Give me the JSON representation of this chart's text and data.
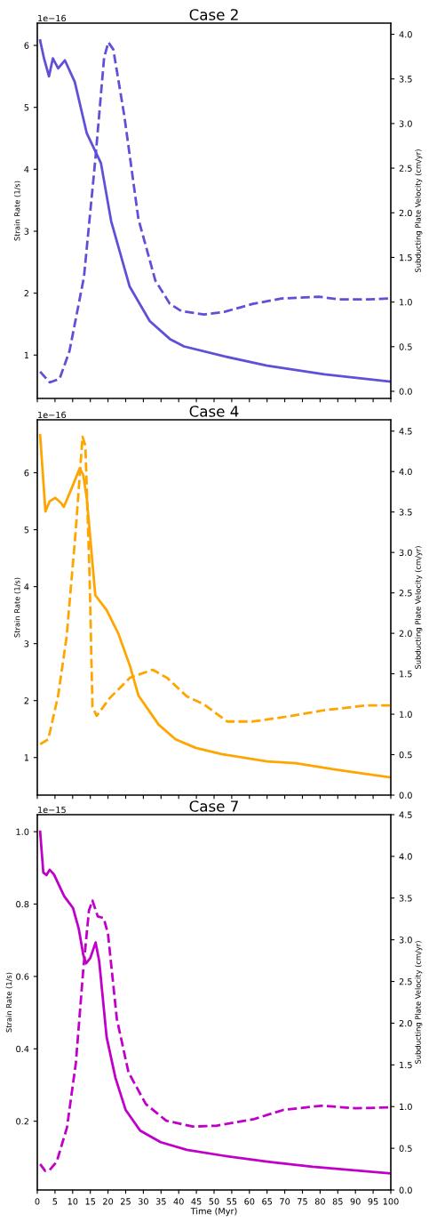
{
  "chart_data": [
    {
      "type": "line",
      "title": "Case 2",
      "ylabel": "Strain Rate (1/s)",
      "y2label": "Subducting Plate Velocity (cm/yr)",
      "annotations": [
        "1e−16"
      ],
      "tick_labels": "y",
      "xlim": [
        0,
        100
      ],
      "xticks": [
        0,
        5,
        10,
        15,
        20,
        25,
        30,
        35,
        40,
        45,
        50,
        55,
        60,
        65,
        70,
        75,
        80,
        85,
        90,
        95,
        100
      ],
      "ylim": [
        0.3,
        6.36
      ],
      "yticks": [
        1,
        2,
        3,
        4,
        5,
        6
      ],
      "y2lim": [
        -0.08,
        4.125
      ],
      "y2ticks": [
        {
          "value": 0,
          "label": "0.0"
        },
        0.5,
        {
          "value": 1,
          "label": "1.0"
        },
        1.5,
        {
          "value": 2,
          "label": "2.0"
        },
        2.5,
        {
          "value": 3,
          "label": "3.0"
        },
        3.5,
        {
          "value": 4,
          "label": "4.0"
        }
      ],
      "grid": false,
      "series": [
        {
          "color": "#5f50d8",
          "line_style": "solid",
          "x": [
            0.8,
            1.9,
            3.3,
            4.4,
            5.9,
            7.8,
            10.6,
            14.0,
            18.0,
            20.9,
            26.1,
            31.8,
            37.5,
            41.5,
            52.9,
            65.0,
            81.2,
            100
          ],
          "values": [
            6.08,
            5.79,
            5.5,
            5.79,
            5.63,
            5.76,
            5.41,
            4.58,
            4.1,
            3.16,
            2.11,
            1.55,
            1.26,
            1.14,
            0.98,
            0.83,
            0.69,
            0.57
          ]
        },
        {
          "color": "#5f50d8",
          "line_style": "dashed",
          "axis": "y2",
          "x": [
            0.8,
            3.5,
            6.3,
            9.1,
            13.2,
            16.4,
            18.9,
            20.1,
            21.5,
            24.6,
            28.6,
            33.4,
            37.5,
            40.7,
            47.2,
            52.9,
            61.0,
            69.1,
            79.6,
            85.3,
            93.4,
            100
          ],
          "values": [
            0.22,
            0.1,
            0.14,
            0.45,
            1.28,
            2.59,
            3.74,
            3.91,
            3.83,
            3.09,
            1.93,
            1.24,
            0.98,
            0.9,
            0.86,
            0.89,
            0.98,
            1.04,
            1.06,
            1.03,
            1.03,
            1.04
          ]
        }
      ]
    },
    {
      "type": "line",
      "title": "Case 4",
      "ylabel": "Strain Rate (1/s)",
      "y2label": "Subducting Plate Velocity (cm/yr)",
      "annotations": [
        "1e−16"
      ],
      "tick_labels": "y",
      "xlim": [
        0,
        100
      ],
      "xticks": [
        0,
        5,
        10,
        15,
        20,
        25,
        30,
        35,
        40,
        45,
        50,
        55,
        60,
        65,
        70,
        75,
        80,
        85,
        90,
        95,
        100
      ],
      "ylim": [
        0.34,
        6.93
      ],
      "yticks": [
        1,
        2,
        3,
        4,
        5,
        6
      ],
      "y2lim": [
        0,
        4.64
      ],
      "y2ticks": [
        {
          "value": 0,
          "label": "0.0"
        },
        0.5,
        {
          "value": 1,
          "label": "1.0"
        },
        1.5,
        {
          "value": 2,
          "label": "2.0"
        },
        2.5,
        {
          "value": 3,
          "label": "3.0"
        },
        3.5,
        {
          "value": 4,
          "label": "4.0"
        },
        4.5
      ],
      "grid": false,
      "series": [
        {
          "color": "#ffa500",
          "line_style": "solid",
          "x": [
            0.8,
            2.3,
            3.5,
            5.1,
            6.7,
            7.5,
            9.6,
            12.0,
            13.0,
            14.0,
            16.4,
            19.6,
            22.9,
            26.2,
            28.6,
            34.3,
            39.1,
            44.8,
            52.1,
            65.0,
            73.1,
            85.3,
            100
          ],
          "values": [
            6.66,
            5.32,
            5.5,
            5.56,
            5.47,
            5.4,
            5.71,
            6.08,
            5.96,
            5.55,
            3.85,
            3.59,
            3.18,
            2.61,
            2.09,
            1.58,
            1.32,
            1.17,
            1.06,
            0.93,
            0.9,
            0.78,
            0.65
          ]
        },
        {
          "color": "#ffa500",
          "line_style": "dashed",
          "axis": "y2",
          "x": [
            0.8,
            3.1,
            5.9,
            8.3,
            10.8,
            12.8,
            13.6,
            14.8,
            15.6,
            16.8,
            20.5,
            26.2,
            32.6,
            36.7,
            42.3,
            47.2,
            53.7,
            61.0,
            69.1,
            81.2,
            93.4,
            100
          ],
          "values": [
            0.63,
            0.69,
            1.23,
            1.96,
            3.23,
            4.43,
            4.32,
            2.69,
            1.09,
            0.98,
            1.2,
            1.45,
            1.55,
            1.45,
            1.22,
            1.12,
            0.91,
            0.91,
            0.96,
            1.05,
            1.11,
            1.11
          ]
        }
      ]
    },
    {
      "type": "line",
      "title": "Case 7",
      "xlabel": "Time (Myr)",
      "ylabel": "Strain Rate (1/s)",
      "y2label": "Subducting Plate Velocity (cm/yr)",
      "annotations": [
        "1e−15"
      ],
      "xlim": [
        0,
        100
      ],
      "xticks": [
        0,
        5,
        10,
        15,
        20,
        25,
        30,
        35,
        40,
        45,
        50,
        55,
        60,
        65,
        70,
        75,
        80,
        85,
        90,
        95,
        100
      ],
      "ylim": [
        0.01,
        1.047
      ],
      "yticks": [
        0.2,
        0.4,
        0.6,
        0.8,
        {
          "value": 1,
          "label": "1.0"
        }
      ],
      "y2lim": [
        0,
        4.5
      ],
      "y2ticks": [
        {
          "value": 0,
          "label": "0.0"
        },
        0.5,
        {
          "value": 1,
          "label": "1.0"
        },
        1.5,
        {
          "value": 2,
          "label": "2.0"
        },
        2.5,
        {
          "value": 3,
          "label": "3.0"
        },
        3.5,
        {
          "value": 4,
          "label": "4.0"
        },
        4.5
      ],
      "grid": false,
      "series": [
        {
          "color": "#c000c8",
          "line_style": "solid",
          "x": [
            0.8,
            1.7,
            2.6,
            3.5,
            4.7,
            7.6,
            10.1,
            11.7,
            13.0,
            13.8,
            15.0,
            16.5,
            17.5,
            19.6,
            22.1,
            25.0,
            29.1,
            34.9,
            42.3,
            53.1,
            65.5,
            77.9,
            100
          ],
          "values": [
            1.0,
            0.887,
            0.88,
            0.895,
            0.882,
            0.822,
            0.789,
            0.733,
            0.66,
            0.636,
            0.651,
            0.694,
            0.643,
            0.433,
            0.32,
            0.231,
            0.174,
            0.142,
            0.121,
            0.104,
            0.088,
            0.074,
            0.056
          ]
        },
        {
          "color": "#c000c8",
          "line_style": "dashed",
          "axis": "y2",
          "x": [
            0.8,
            2.2,
            3.5,
            5.5,
            8.4,
            10.9,
            13.0,
            14.6,
            15.6,
            17.1,
            18.8,
            20.0,
            22.5,
            25.8,
            30.7,
            36.5,
            44.0,
            50.6,
            61.3,
            69.6,
            80.3,
            90.2,
            100
          ],
          "values": [
            0.31,
            0.23,
            0.24,
            0.34,
            0.75,
            1.52,
            2.64,
            3.35,
            3.47,
            3.28,
            3.26,
            3.07,
            2.05,
            1.41,
            1.03,
            0.83,
            0.76,
            0.77,
            0.85,
            0.96,
            1.01,
            0.98,
            0.99
          ]
        }
      ]
    }
  ]
}
